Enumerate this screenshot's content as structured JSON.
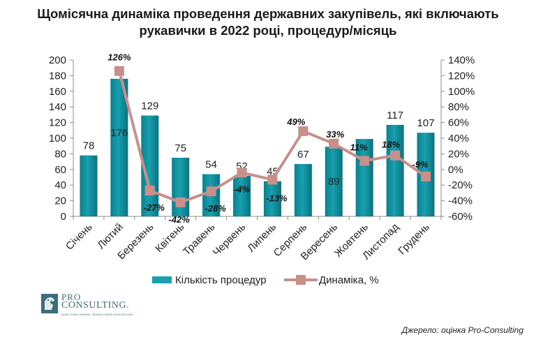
{
  "chart_data": {
    "type": "bar",
    "title_line1": "Щомісячна динаміка проведення державних закупівель, які включають",
    "title_line2": "рукавички в 2022 році, процедур/місяць",
    "categories": [
      "Січень",
      "Лютий",
      "Березень",
      "Квітень",
      "Травень",
      "Червень",
      "Липень",
      "Серпень",
      "Вересень",
      "Жовтень",
      "Листопад",
      "Грудень"
    ],
    "series": [
      {
        "name": "Кількість процедур",
        "type": "bar",
        "axis": "left",
        "color": "#17a0ae",
        "values": [
          78,
          176,
          129,
          75,
          54,
          52,
          45,
          67,
          89,
          99,
          117,
          107
        ]
      },
      {
        "name": "Динаміка, %",
        "type": "line",
        "axis": "right",
        "color": "#c88f8b",
        "values": [
          null,
          126,
          -27,
          -42,
          -28,
          -4,
          -13,
          49,
          33,
          11,
          18,
          -9
        ]
      }
    ],
    "bar_labels": [
      "78",
      "176",
      "129",
      "75",
      "54",
      "52",
      "45",
      "67",
      "89",
      "99",
      "117",
      "107"
    ],
    "line_labels": [
      "",
      "126%",
      "-27%",
      "-42%",
      "-28%",
      "-4%",
      "-13%",
      "49%",
      "33%",
      "11%",
      "18%",
      "-9%"
    ],
    "ylim": [
      0,
      200
    ],
    "y_ticks": [
      "0",
      "20",
      "40",
      "60",
      "80",
      "100",
      "120",
      "140",
      "160",
      "180",
      "200"
    ],
    "y2lim": [
      -60,
      140
    ],
    "y2_ticks": [
      "-60%",
      "-40%",
      "-20%",
      "0%",
      "20%",
      "40%",
      "60%",
      "80%",
      "100%",
      "120%",
      "140%"
    ],
    "legend_position": "bottom",
    "grid": false
  },
  "logo": {
    "line1": "PRO",
    "line2": "CONSULTING.",
    "tagline": "АНАЛІТИКА РИНКІВ, ФІНАНСОВИЙ КОНСАЛТИНГ"
  },
  "source": "Джерело: оцінка Pro-Consulting"
}
